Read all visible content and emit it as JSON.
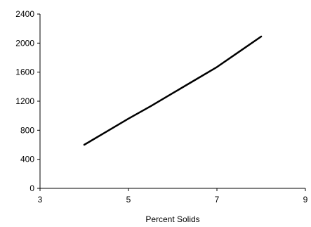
{
  "chart_data": {
    "type": "line",
    "title": "",
    "xlabel": "Percent Solids",
    "ylabel": "",
    "xlim": [
      3,
      9
    ],
    "ylim": [
      0,
      2400
    ],
    "x_ticks": [
      3,
      5,
      7,
      9
    ],
    "y_ticks": [
      0,
      400,
      800,
      1200,
      1600,
      2000,
      2400
    ],
    "grid": false,
    "legend": "none",
    "series": [
      {
        "color": "#000000",
        "x": [
          4,
          4.5,
          5,
          5.5,
          6,
          6.5,
          7,
          7.5,
          8
        ],
        "y": [
          600,
          780,
          960,
          1130,
          1310,
          1490,
          1670,
          1880,
          2090
        ]
      }
    ]
  }
}
